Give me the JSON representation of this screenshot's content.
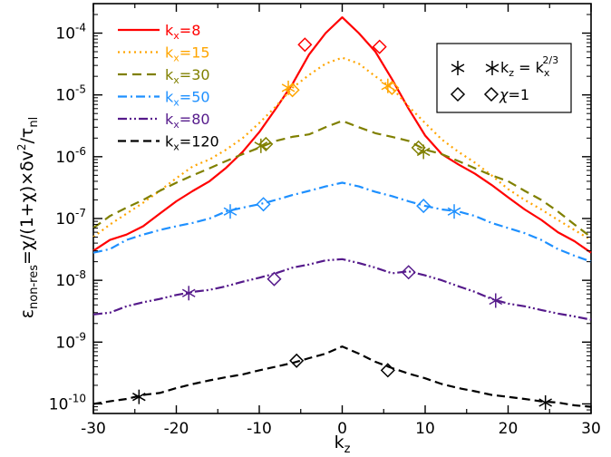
{
  "chart_data": {
    "type": "line",
    "xlabel": "k",
    "xlabel_sub": "z",
    "ylabel_parts": {
      "eps": "ε",
      "sub": "non-res",
      "expr": "=χ/(1+χ)×δv",
      "sup": "2",
      "slash": "/τ",
      "sub2": "nl"
    },
    "xlim": [
      -30,
      30
    ],
    "ylim": [
      7e-11,
      0.0003
    ],
    "yscale": "log",
    "x_ticks": [
      "-30",
      "-20",
      "-10",
      "0",
      "10",
      "20",
      "30"
    ],
    "y_ticks": [
      {
        "base": "10",
        "exp": "-10",
        "v": 1e-10
      },
      {
        "base": "10",
        "exp": "-9",
        "v": 1e-09
      },
      {
        "base": "10",
        "exp": "-8",
        "v": 1e-08
      },
      {
        "base": "10",
        "exp": "-7",
        "v": 1e-07
      },
      {
        "base": "10",
        "exp": "-6",
        "v": 1e-06
      },
      {
        "base": "10",
        "exp": "-5",
        "v": 1e-05
      },
      {
        "base": "10",
        "exp": "-4",
        "v": 0.0001
      }
    ],
    "series": [
      {
        "name_base": "k",
        "name_sub": "x",
        "name_val": "=8",
        "color": "#ff0000",
        "dash": "",
        "x": [
          -30,
          -28,
          -26,
          -24,
          -22,
          -20,
          -18,
          -16,
          -14,
          -12,
          -10,
          -8,
          -6,
          -4,
          -2,
          0,
          2,
          4,
          6,
          8,
          10,
          12,
          14,
          16,
          18,
          20,
          22,
          24,
          26,
          28,
          30
        ],
        "y": [
          3e-08,
          4.5e-08,
          5.5e-08,
          7.5e-08,
          1.2e-07,
          1.9e-07,
          2.8e-07,
          4e-07,
          6.6e-07,
          1.2e-06,
          2.5e-06,
          6e-06,
          1.5e-05,
          4.5e-05,
          0.0001,
          0.00018,
          0.0001,
          5e-05,
          1.8e-05,
          6e-06,
          2.2e-06,
          1.1e-06,
          7.5e-07,
          5.3e-07,
          3.5e-07,
          2.2e-07,
          1.4e-07,
          9.5e-08,
          6e-08,
          4.3e-08,
          2.8e-08
        ],
        "stars": [],
        "diamonds": [
          [
            -4.5,
            6.5e-05
          ],
          [
            4.5,
            6e-05
          ]
        ]
      },
      {
        "name_base": "k",
        "name_sub": "x",
        "name_val": "=15",
        "color": "#ffa500",
        "dash": "2,4",
        "x": [
          -30,
          -28,
          -26,
          -24,
          -22,
          -20,
          -18,
          -16,
          -14,
          -12,
          -10,
          -8,
          -6,
          -4,
          -2,
          0,
          2,
          4,
          6,
          8,
          10,
          12,
          14,
          16,
          18,
          20,
          22,
          24,
          26,
          28,
          30
        ],
        "y": [
          5e-08,
          8e-08,
          1.2e-07,
          1.8e-07,
          2.8e-07,
          4.5e-07,
          7e-07,
          9e-07,
          1.3e-06,
          2e-06,
          3.5e-06,
          6.5e-06,
          1.3e-05,
          2.1e-05,
          3.2e-05,
          4e-05,
          3.2e-05,
          2e-05,
          1.3e-05,
          6.5e-06,
          3.5e-06,
          1.9e-06,
          1.2e-06,
          8e-07,
          5e-07,
          3e-07,
          2e-07,
          1.4e-07,
          9.5e-08,
          6.5e-08,
          4.5e-08
        ],
        "stars": [
          [
            -6.5,
            1.3e-05
          ],
          [
            5.5,
            1.4e-05
          ]
        ],
        "diamonds": [
          [
            -6,
            1.2e-05
          ],
          [
            6,
            1.3e-05
          ]
        ]
      },
      {
        "name_base": "k",
        "name_sub": "x",
        "name_val": "=30",
        "color": "#808000",
        "dash": "10,6",
        "x": [
          -30,
          -28,
          -26,
          -24,
          -22,
          -20,
          -18,
          -16,
          -14,
          -12,
          -10,
          -8,
          -6,
          -4,
          -2,
          0,
          2,
          4,
          6,
          8,
          10,
          12,
          14,
          16,
          18,
          20,
          22,
          24,
          26,
          28,
          30
        ],
        "y": [
          7e-08,
          1.1e-07,
          1.5e-07,
          2e-07,
          2.8e-07,
          3.8e-07,
          5e-07,
          6.5e-07,
          8.5e-07,
          1.1e-06,
          1.4e-06,
          1.8e-06,
          2.1e-06,
          2.3e-06,
          3e-06,
          3.8e-06,
          3e-06,
          2.4e-06,
          2.1e-06,
          1.8e-06,
          1.3e-06,
          1.1e-06,
          8.5e-07,
          6.5e-07,
          5e-07,
          4e-07,
          2.8e-07,
          2e-07,
          1.3e-07,
          8e-08,
          5e-08
        ],
        "stars": [
          [
            -9.8,
            1.5e-06
          ],
          [
            9.8,
            1.2e-06
          ]
        ],
        "diamonds": [
          [
            -9.2,
            1.6e-06
          ],
          [
            9.2,
            1.4e-06
          ]
        ]
      },
      {
        "name_base": "k",
        "name_sub": "x",
        "name_val": "=50",
        "color": "#1e90ff",
        "dash": "10,4,2,4",
        "x": [
          -30,
          -28,
          -26,
          -24,
          -22,
          -20,
          -18,
          -16,
          -14,
          -12,
          -10,
          -8,
          -6,
          -4,
          -2,
          0,
          2,
          4,
          6,
          8,
          10,
          12,
          14,
          16,
          18,
          20,
          22,
          24,
          26,
          28,
          30
        ],
        "y": [
          2.8e-08,
          3.2e-08,
          4.5e-08,
          5.5e-08,
          6.5e-08,
          7.5e-08,
          8.5e-08,
          1e-07,
          1.3e-07,
          1.5e-07,
          1.7e-07,
          2e-07,
          2.4e-07,
          2.8e-07,
          3.3e-07,
          3.8e-07,
          3.3e-07,
          2.7e-07,
          2.3e-07,
          1.9e-07,
          1.6e-07,
          1.4e-07,
          1.3e-07,
          1.1e-07,
          8.5e-08,
          7e-08,
          5.8e-08,
          4.5e-08,
          3.2e-08,
          2.5e-08,
          2e-08
        ],
        "stars": [
          [
            -13.5,
            1.3e-07
          ],
          [
            13.5,
            1.3e-07
          ]
        ],
        "diamonds": [
          [
            -9.5,
            1.7e-07
          ],
          [
            9.8,
            1.6e-07
          ]
        ]
      },
      {
        "name_base": "k",
        "name_sub": "x",
        "name_val": "=80",
        "color": "#551a8b",
        "dash": "10,3,2,3,2,3",
        "x": [
          -30,
          -28,
          -26,
          -24,
          -22,
          -20,
          -18,
          -16,
          -14,
          -12,
          -10,
          -8,
          -6,
          -4,
          -2,
          0,
          2,
          4,
          6,
          8,
          10,
          12,
          14,
          16,
          18,
          20,
          22,
          24,
          26,
          28,
          30
        ],
        "y": [
          2.8e-09,
          3e-09,
          3.8e-09,
          4.4e-09,
          5e-09,
          5.8e-09,
          6.5e-09,
          7e-09,
          8e-09,
          9.5e-09,
          1.1e-08,
          1.3e-08,
          1.6e-08,
          1.8e-08,
          2.1e-08,
          2.2e-08,
          1.9e-08,
          1.6e-08,
          1.3e-08,
          1.4e-08,
          1.2e-08,
          1e-08,
          8e-09,
          6.5e-09,
          5e-09,
          4.2e-09,
          3.8e-09,
          3.3e-09,
          2.9e-09,
          2.6e-09,
          2.3e-09
        ],
        "stars": [
          [
            -18.5,
            6.2e-09
          ],
          [
            18.5,
            4.7e-09
          ]
        ],
        "diamonds": [
          [
            -8.2,
            1.05e-08
          ],
          [
            8,
            1.35e-08
          ]
        ]
      },
      {
        "name_base": "k",
        "name_sub": "x",
        "name_val": "=120",
        "color": "#000000",
        "dash": "9,5",
        "x": [
          -30,
          -28,
          -26,
          -24,
          -22,
          -20,
          -18,
          -16,
          -14,
          -12,
          -10,
          -8,
          -6,
          -4,
          -2,
          0,
          2,
          4,
          6,
          8,
          10,
          12,
          14,
          16,
          18,
          20,
          22,
          24,
          26,
          28,
          30
        ],
        "y": [
          1e-10,
          1.1e-10,
          1.2e-10,
          1.4e-10,
          1.5e-10,
          1.8e-10,
          2.1e-10,
          2.4e-10,
          2.7e-10,
          3e-10,
          3.5e-10,
          4e-10,
          4.6e-10,
          5.5e-10,
          6.5e-10,
          8.5e-10,
          6.5e-10,
          4.8e-10,
          3.8e-10,
          3.1e-10,
          2.6e-10,
          2.1e-10,
          1.8e-10,
          1.6e-10,
          1.4e-10,
          1.3e-10,
          1.2e-10,
          1.1e-10,
          1.05e-10,
          9.5e-11,
          9e-11
        ],
        "stars": [
          [
            -24.5,
            1.3e-10
          ],
          [
            24.5,
            1.05e-10
          ]
        ],
        "diamonds": [
          [
            -5.5,
            5e-10
          ],
          [
            5.5,
            3.5e-10
          ]
        ]
      }
    ],
    "marker_legend": {
      "star": {
        "lhs": "k",
        "lhs_sub": "z",
        "mid": " = k",
        "mid_sub": "x",
        "mid_sup": "2/3"
      },
      "diamond": {
        "chi": "χ",
        "rest": "=1"
      }
    },
    "legend_position": "top-left",
    "marker_legend_position": "top-right"
  }
}
